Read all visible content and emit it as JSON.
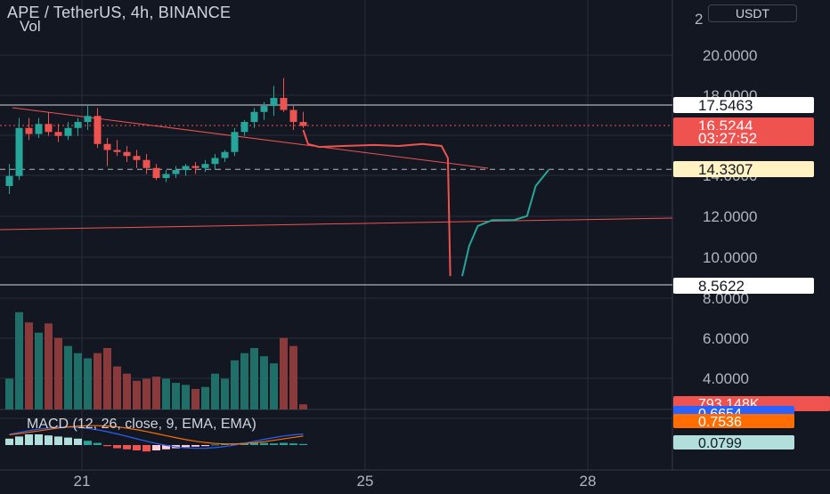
{
  "header": {
    "title": "APE / TetherUS, 4h, BINANCE",
    "volume_label": "Vol",
    "currency": "USDT"
  },
  "colors": {
    "background": "#131722",
    "grid": "#2a2e39",
    "up": "#26a69a",
    "down": "#ef5350",
    "macd_line": "#2962ff",
    "signal_line": "#ff6d00",
    "hist_up": "#b2dfdb",
    "hist_down": "#ffcdd2"
  },
  "chart_data": [
    {
      "type": "candlestick",
      "title": "APE / TetherUS, 4h, BINANCE",
      "y_ticks": [
        "20.0000",
        "18.0000",
        "14.0000",
        "12.0000",
        "10.0000",
        "8.0000",
        "6.0000",
        "4.0000",
        "2"
      ],
      "x_ticks": [
        "21",
        "25",
        "28"
      ],
      "price_labels": [
        {
          "label": "17.5463",
          "style": "line"
        },
        {
          "label": "16.5244",
          "style": "last"
        },
        {
          "label": "03:27:52",
          "style": "countdown"
        },
        {
          "label": "14.3307",
          "style": "crosshair"
        },
        {
          "label": "8.5622",
          "style": "line"
        }
      ],
      "candles": [
        {
          "o": 13.5,
          "h": 14.6,
          "l": 13.1,
          "c": 14.0
        },
        {
          "o": 14.0,
          "h": 16.9,
          "l": 13.8,
          "c": 16.4
        },
        {
          "o": 16.4,
          "h": 16.9,
          "l": 15.8,
          "c": 16.1
        },
        {
          "o": 16.1,
          "h": 16.9,
          "l": 15.9,
          "c": 16.6
        },
        {
          "o": 16.6,
          "h": 17.2,
          "l": 16.0,
          "c": 16.2
        },
        {
          "o": 16.2,
          "h": 16.6,
          "l": 15.7,
          "c": 16.0
        },
        {
          "o": 16.0,
          "h": 16.7,
          "l": 15.8,
          "c": 16.4
        },
        {
          "o": 16.4,
          "h": 16.9,
          "l": 16.0,
          "c": 16.7
        },
        {
          "o": 16.7,
          "h": 17.5,
          "l": 16.3,
          "c": 17.0
        },
        {
          "o": 17.0,
          "h": 17.4,
          "l": 15.4,
          "c": 15.6
        },
        {
          "o": 15.6,
          "h": 15.9,
          "l": 14.5,
          "c": 15.3
        },
        {
          "o": 15.3,
          "h": 15.8,
          "l": 15.0,
          "c": 15.2
        },
        {
          "o": 15.2,
          "h": 15.5,
          "l": 14.7,
          "c": 15.0
        },
        {
          "o": 15.0,
          "h": 15.3,
          "l": 14.4,
          "c": 14.8
        },
        {
          "o": 14.8,
          "h": 15.1,
          "l": 14.1,
          "c": 14.4
        },
        {
          "o": 14.4,
          "h": 14.6,
          "l": 13.8,
          "c": 13.9
        },
        {
          "o": 13.9,
          "h": 14.3,
          "l": 13.7,
          "c": 14.1
        },
        {
          "o": 14.1,
          "h": 14.5,
          "l": 13.9,
          "c": 14.3
        },
        {
          "o": 14.3,
          "h": 14.6,
          "l": 14.0,
          "c": 14.5
        },
        {
          "o": 14.5,
          "h": 14.7,
          "l": 14.1,
          "c": 14.4
        },
        {
          "o": 14.4,
          "h": 14.8,
          "l": 14.2,
          "c": 14.6
        },
        {
          "o": 14.6,
          "h": 15.1,
          "l": 14.3,
          "c": 14.9
        },
        {
          "o": 14.9,
          "h": 15.3,
          "l": 14.7,
          "c": 15.2
        },
        {
          "o": 15.2,
          "h": 16.4,
          "l": 15.0,
          "c": 16.2
        },
        {
          "o": 16.2,
          "h": 16.8,
          "l": 16.0,
          "c": 16.7
        },
        {
          "o": 16.7,
          "h": 17.4,
          "l": 16.4,
          "c": 17.2
        },
        {
          "o": 17.2,
          "h": 17.7,
          "l": 16.8,
          "c": 17.5
        },
        {
          "o": 17.5,
          "h": 18.5,
          "l": 17.0,
          "c": 17.9
        },
        {
          "o": 17.9,
          "h": 18.9,
          "l": 17.2,
          "c": 17.3
        },
        {
          "o": 17.3,
          "h": 17.5,
          "l": 16.3,
          "c": 16.7
        },
        {
          "o": 16.7,
          "h": 17.2,
          "l": 16.4,
          "c": 16.5
        }
      ],
      "volume_relative": [
        0.3,
        0.95,
        0.85,
        0.75,
        0.84,
        0.7,
        0.62,
        0.55,
        0.5,
        0.55,
        0.6,
        0.42,
        0.35,
        0.28,
        0.3,
        0.32,
        0.3,
        0.26,
        0.24,
        0.2,
        0.22,
        0.35,
        0.3,
        0.48,
        0.55,
        0.6,
        0.52,
        0.45,
        0.7,
        0.62,
        0.05
      ],
      "levels": [
        {
          "value": 17.5463,
          "style": "solid",
          "color": "#d1d4dc"
        },
        {
          "value": 8.5622,
          "style": "solid",
          "color": "#d1d4dc"
        },
        {
          "value": 14.3307,
          "style": "dashed",
          "color": "#b2b5be"
        },
        {
          "value": 16.5244,
          "style": "dotted",
          "color": "#ef5350"
        }
      ],
      "projection_path": [
        [
          16.3,
          0.0
        ],
        [
          15.6,
          0.03
        ],
        [
          15.45,
          0.1
        ],
        [
          15.5,
          0.25
        ],
        [
          15.55,
          0.45
        ],
        [
          15.5,
          0.6
        ],
        [
          15.6,
          0.75
        ],
        [
          15.5,
          0.87
        ],
        [
          14.9,
          0.91
        ],
        [
          13.0,
          0.915
        ],
        [
          11.0,
          0.92
        ],
        [
          9.0,
          0.925
        ]
      ],
      "projection_path_up": [
        [
          9.0,
          0.0
        ],
        [
          10.5,
          0.08
        ],
        [
          11.5,
          0.18
        ],
        [
          11.8,
          0.35
        ],
        [
          11.8,
          0.6
        ],
        [
          12.0,
          0.75
        ],
        [
          13.5,
          0.85
        ],
        [
          14.3,
          1.0
        ]
      ]
    },
    {
      "type": "line",
      "title": "MACD (12, 26, close, 9, EMA, EMA)",
      "series_labels": [
        "0.6654",
        "0.7536",
        "0.0799"
      ],
      "histogram": [
        0.6,
        0.8,
        1.0,
        1.0,
        0.9,
        0.8,
        0.7,
        0.6,
        0.4,
        0.2,
        -0.1,
        -0.3,
        -0.4,
        -0.5,
        -0.6,
        -0.5,
        -0.4,
        -0.3,
        -0.2,
        -0.15,
        -0.1,
        0.05,
        0.1,
        0.15,
        0.2,
        0.25,
        0.2,
        0.15,
        0.2,
        0.15,
        0.1
      ]
    }
  ],
  "side_labels": {
    "volume_value": "793.148K"
  }
}
